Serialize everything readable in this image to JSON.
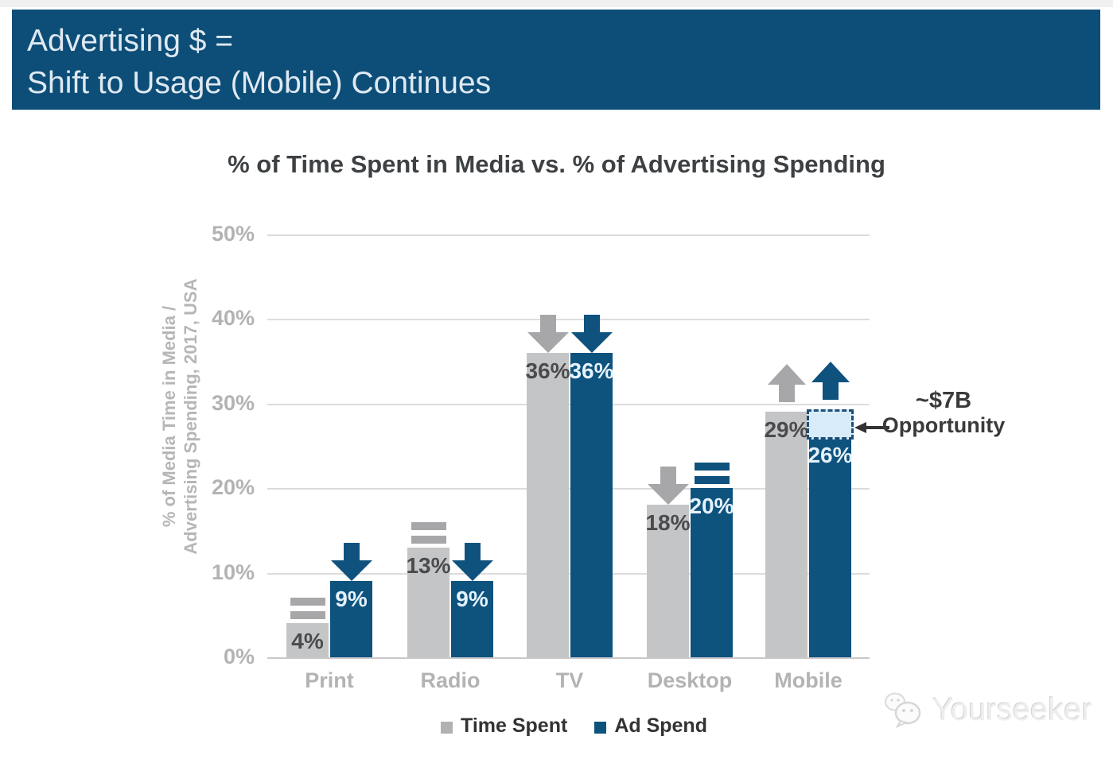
{
  "header": {
    "line1": "Advertising $ =",
    "line2": "Shift to Usage (Mobile) Continues",
    "bg_color": "#0d4e78"
  },
  "chart_data": {
    "type": "bar",
    "title": "% of Time Spent in Media vs. % of Advertising Spending",
    "ylabel_line1": "% of Media Time in Media /",
    "ylabel_line2": "Advertising Spending, 2017, USA",
    "categories": [
      "Print",
      "Radio",
      "TV",
      "Desktop",
      "Mobile"
    ],
    "series": [
      {
        "name": "Time Spent",
        "color": "#c4c5c7",
        "label_color": "#4b4b4d",
        "indicator_color": "#a7a7a9",
        "values": [
          4,
          13,
          36,
          18,
          29
        ],
        "trends": [
          "flat",
          "flat",
          "down",
          "down",
          "up"
        ]
      },
      {
        "name": "Ad Spend",
        "color": "#0e527e",
        "label_color": "#e4f2fb",
        "indicator_color": "#0f527d",
        "values": [
          9,
          9,
          36,
          20,
          26
        ],
        "trends": [
          "down",
          "down",
          "down",
          "flat",
          "up"
        ]
      }
    ],
    "ylim": [
      0,
      50
    ],
    "yticks": [
      "0%",
      "10%",
      "20%",
      "30%",
      "40%",
      "50%"
    ],
    "ytick_values": [
      0,
      10,
      20,
      30,
      40,
      50
    ],
    "grid": true,
    "legend_position": "bottom",
    "annotation": {
      "line1": "~$7B",
      "line2": "Opportunity",
      "gap": {
        "category": "Mobile",
        "series": "Ad Spend",
        "cat_index": 4,
        "series_index": 1,
        "from_pct": 26,
        "to_pct": 29
      }
    }
  },
  "watermark": {
    "text": "Yourseeker"
  }
}
